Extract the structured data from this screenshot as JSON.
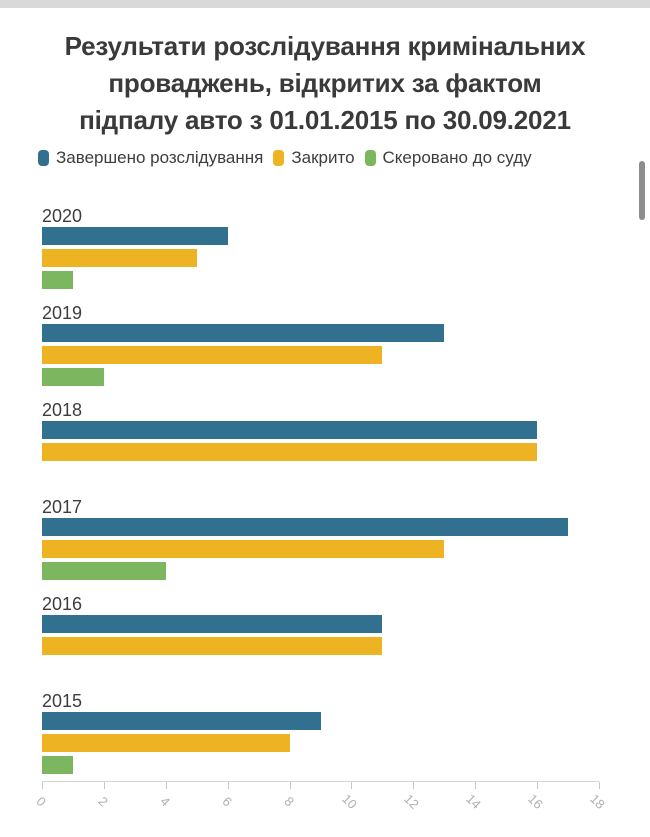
{
  "page": {
    "background": "#ffffff",
    "top_strip_color": "#d9d9d9"
  },
  "scrollbar": {
    "thumb_color": "#8d8d8d"
  },
  "title_lines": [
    "Результати розслідування кримінальних",
    "проваджень, відкритих за фактом",
    "підпалу авто з 01.01.2015 по 30.09.2021"
  ],
  "chart_data": {
    "type": "bar",
    "orientation": "horizontal",
    "title": "Результати розслідування кримінальних проваджень, відкритих за фактом підпалу авто з 01.01.2015 по 30.09.2021",
    "categories": [
      "2020",
      "2019",
      "2018",
      "2017",
      "2016",
      "2015"
    ],
    "series": [
      {
        "id": "completed-investigation",
        "name": "Завершено розслідування",
        "color": "#31718f",
        "values": [
          6,
          13,
          16,
          17,
          11,
          9
        ]
      },
      {
        "id": "closed",
        "name": "Закрито",
        "color": "#eeb322",
        "values": [
          5,
          11,
          16,
          13,
          11,
          8
        ]
      },
      {
        "id": "sent-to-court",
        "name": "Скеровано до суду",
        "color": "#7cb75f",
        "values": [
          1,
          2,
          0,
          4,
          0,
          1
        ]
      }
    ],
    "xlim": [
      0,
      18
    ],
    "x_ticks": [
      0,
      2,
      4,
      6,
      8,
      10,
      12,
      14,
      16,
      18
    ],
    "grid": false,
    "legend_position": "top",
    "axis_color": "#d4d4d4",
    "tick_label_color": "#b0b0b0"
  }
}
